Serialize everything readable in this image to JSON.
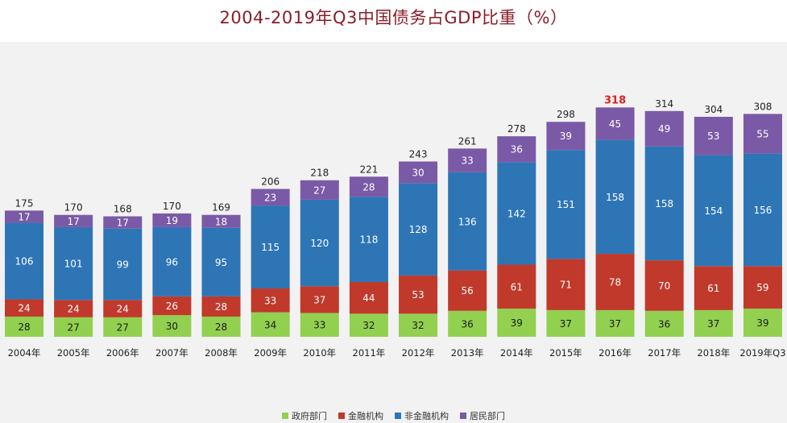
{
  "chart_data": {
    "type": "bar",
    "stacked": true,
    "title": "2004-2019年Q3中国债务占GDP比重（%）",
    "categories": [
      "2004年",
      "2005年",
      "2006年",
      "2007年",
      "2008年",
      "2009年",
      "2010年",
      "2011年",
      "2012年",
      "2013年",
      "2014年",
      "2015年",
      "2016年",
      "2017年",
      "2018年",
      "2019年Q3"
    ],
    "series": [
      {
        "name": "政府部门",
        "color": "#92d050",
        "values": [
          28,
          27,
          27,
          30,
          28,
          34,
          33,
          32,
          32,
          36,
          39,
          37,
          37,
          36,
          37,
          39
        ]
      },
      {
        "name": "金融机构",
        "color": "#c0392b",
        "values": [
          24,
          24,
          24,
          26,
          28,
          33,
          37,
          44,
          53,
          56,
          61,
          71,
          78,
          70,
          61,
          59
        ]
      },
      {
        "name": "非金融机构",
        "color": "#2e75b6",
        "values": [
          106,
          101,
          99,
          96,
          95,
          115,
          120,
          118,
          128,
          136,
          142,
          151,
          158,
          158,
          154,
          156
        ]
      },
      {
        "name": "居民部门",
        "color": "#7a5aa6",
        "values": [
          17,
          17,
          17,
          19,
          18,
          23,
          27,
          28,
          30,
          33,
          36,
          39,
          45,
          49,
          53,
          55
        ]
      }
    ],
    "totals": [
      175,
      170,
      168,
      170,
      169,
      206,
      218,
      221,
      243,
      261,
      278,
      298,
      318,
      314,
      304,
      308
    ],
    "highlight_index": 12,
    "highlight_color": "#e02020",
    "xlabel": "",
    "ylabel": "",
    "legend_position": "bottom",
    "grid": false
  }
}
